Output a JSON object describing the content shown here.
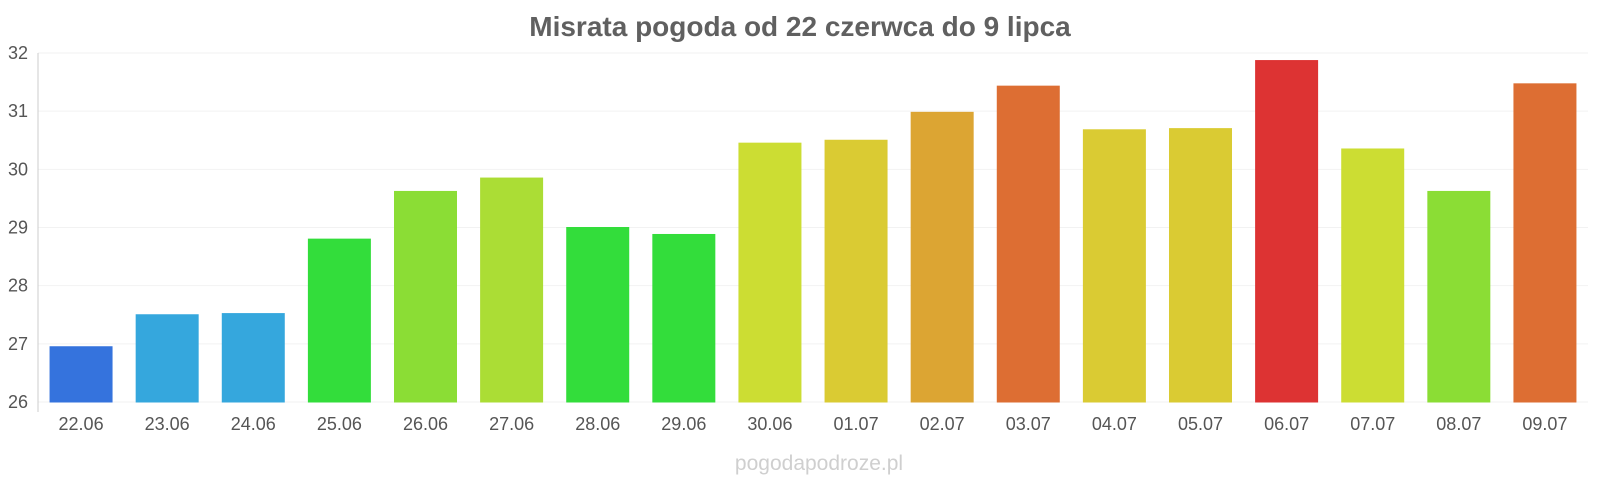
{
  "chart_data": {
    "type": "bar",
    "title": "Misrata pogoda od 22 czerwca do 9 lipca",
    "xlabel": "",
    "ylabel": "",
    "ylim": [
      26,
      32
    ],
    "yticks": [
      26,
      27,
      28,
      29,
      30,
      31,
      32
    ],
    "grid": true,
    "legend": "none",
    "categories": [
      "22.06",
      "23.06",
      "24.06",
      "25.06",
      "26.06",
      "27.06",
      "28.06",
      "29.06",
      "30.06",
      "01.07",
      "02.07",
      "03.07",
      "04.07",
      "05.07",
      "06.07",
      "07.07",
      "08.07",
      "09.07"
    ],
    "values": [
      26.95,
      27.5,
      27.52,
      28.8,
      29.62,
      29.85,
      29.0,
      28.88,
      30.45,
      30.5,
      30.98,
      31.43,
      30.68,
      30.7,
      31.87,
      30.35,
      29.62,
      31.47
    ],
    "colors": [
      "#3573dd",
      "#35a7dd",
      "#35a7dd",
      "#33dd3b",
      "#8bdd35",
      "#abdd35",
      "#33dd3b",
      "#33dd3b",
      "#ccdd33",
      "#dacb33",
      "#dca533",
      "#dd6e33",
      "#dacb33",
      "#dacb33",
      "#dd3333",
      "#ccdd33",
      "#8bdd35",
      "#dd6e33"
    ]
  },
  "watermark": "pogodapodroze.pl"
}
